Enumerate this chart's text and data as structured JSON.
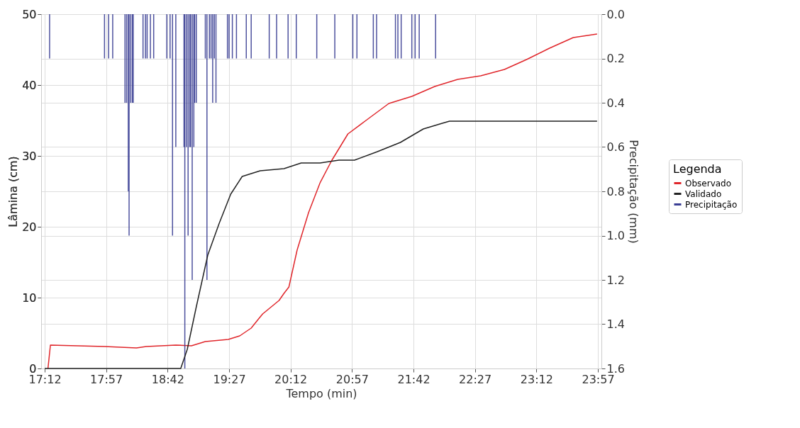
{
  "chart_data": {
    "type": "line",
    "xlabel": "Tempo (min)",
    "ylabel": "Lâmina (cm)",
    "y2label": "Precipitação (mm)",
    "legend_title": "Legenda",
    "xlim": [
      17.2,
      23.95
    ],
    "xticks": [
      {
        "value": 17.2,
        "label": "17:12"
      },
      {
        "value": 17.95,
        "label": "17:57"
      },
      {
        "value": 18.7,
        "label": "18:42"
      },
      {
        "value": 19.45,
        "label": "19:27"
      },
      {
        "value": 20.2,
        "label": "20:12"
      },
      {
        "value": 20.95,
        "label": "20:57"
      },
      {
        "value": 21.7,
        "label": "21:42"
      },
      {
        "value": 22.45,
        "label": "22:27"
      },
      {
        "value": 23.2,
        "label": "23:12"
      },
      {
        "value": 23.95,
        "label": "23:57"
      }
    ],
    "ylim": [
      0,
      50
    ],
    "yticks": [
      0,
      10,
      20,
      30,
      40,
      50
    ],
    "y2lim": [
      1.6,
      0.0
    ],
    "y2ticks": [
      {
        "value": 0,
        "label": "0.0"
      },
      0.2,
      0.4,
      0.6,
      0.8,
      {
        "value": 1,
        "label": "1.0"
      },
      1.2,
      1.4,
      1.6
    ],
    "grid": true,
    "legend": "right",
    "series": [
      {
        "name": "Observado",
        "color": "#e0262b",
        "x": [
          17.24,
          17.27,
          17.93,
          18.32,
          18.44,
          18.8,
          18.99,
          19.16,
          19.44,
          19.58,
          19.72,
          19.81,
          19.86,
          20.06,
          20.12,
          20.18,
          20.28,
          20.42,
          20.56,
          20.7,
          20.9,
          21.12,
          21.4,
          21.68,
          21.96,
          22.24,
          22.52,
          22.81,
          23.08,
          23.36,
          23.65,
          23.94
        ],
        "values": [
          0,
          3.3,
          3.1,
          2.9,
          3.1,
          3.3,
          3.2,
          3.8,
          4.1,
          4.6,
          5.7,
          7.0,
          7.7,
          9.6,
          10.6,
          11.5,
          16.7,
          22.0,
          26.2,
          29.3,
          33.1,
          35.0,
          37.4,
          38.4,
          39.8,
          40.8,
          41.3,
          42.2,
          43.6,
          45.2,
          46.7,
          47.2
        ]
      },
      {
        "name": "Validado",
        "color": "#222222",
        "x": [
          17.2,
          18.86,
          18.94,
          19.05,
          19.19,
          19.33,
          19.47,
          19.61,
          19.83,
          20.12,
          20.33,
          20.56,
          20.79,
          20.98,
          21.26,
          21.54,
          21.82,
          22.05,
          22.14,
          23.94
        ],
        "values": [
          0,
          0,
          2.7,
          8.7,
          16.0,
          20.5,
          24.6,
          27.1,
          27.9,
          28.2,
          29.0,
          29.0,
          29.4,
          29.4,
          30.6,
          31.9,
          33.8,
          34.6,
          34.9,
          34.9
        ]
      },
      {
        "name": "Precipitação",
        "type": "bar",
        "axis": "y2",
        "color": "#3a3e94",
        "x": [
          17.26,
          17.93,
          17.98,
          18.03,
          18.18,
          18.2,
          18.22,
          18.23,
          18.25,
          18.27,
          18.28,
          18.4,
          18.43,
          18.45,
          18.49,
          18.53,
          18.69,
          18.73,
          18.76,
          18.8,
          18.9,
          18.91,
          18.93,
          18.95,
          18.97,
          18.98,
          19.0,
          19.02,
          19.03,
          19.05,
          19.16,
          19.18,
          19.21,
          19.23,
          19.25,
          19.27,
          19.29,
          19.43,
          19.45,
          19.49,
          19.54,
          19.66,
          19.72,
          19.94,
          20.03,
          20.17,
          20.27,
          20.52,
          20.74,
          20.96,
          21.01,
          21.21,
          21.25,
          21.48,
          21.51,
          21.55,
          21.68,
          21.72,
          21.77,
          21.97
        ],
        "values": [
          0.2,
          0.2,
          0.2,
          0.2,
          0.4,
          0.4,
          0.8,
          1.0,
          0.4,
          0.4,
          0.4,
          0.2,
          0.2,
          0.2,
          0.2,
          0.2,
          0.2,
          0.2,
          1.0,
          0.6,
          0.6,
          1.6,
          0.6,
          1.0,
          0.6,
          0.6,
          1.2,
          0.6,
          0.4,
          0.4,
          0.2,
          1.2,
          0.2,
          0.2,
          0.4,
          0.2,
          0.4,
          0.2,
          0.2,
          0.2,
          0.2,
          0.2,
          0.2,
          0.2,
          0.2,
          0.2,
          0.2,
          0.2,
          0.2,
          0.2,
          0.2,
          0.2,
          0.2,
          0.2,
          0.2,
          0.2,
          0.2,
          0.2,
          0.2,
          0.2
        ]
      }
    ]
  }
}
